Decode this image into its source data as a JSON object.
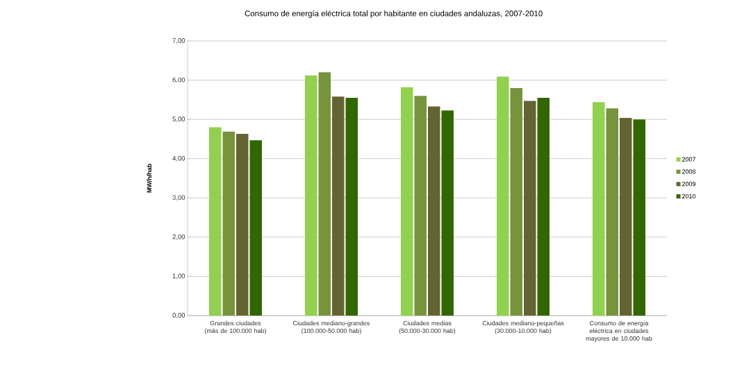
{
  "chart_data": {
    "type": "bar",
    "title": "Consumo de energía eléctrica total por habitante en ciudades andaluzas, 2007-2010",
    "ylabel": "MW/h/hab",
    "categories": [
      "Grandes ciudades (más de 100.000 hab)",
      "Ciudades mediano-grandes (100.000-50.000 hab)",
      "Ciudades medias (50.000-30.000 hab)",
      "Ciudades mediano-pequeñas (30.000-10.000 hab)",
      "Consumo de energía eléctrica en ciudades mayores de 10.000 hab"
    ],
    "series": [
      {
        "name": "2007",
        "color": "#92d050",
        "values": [
          4.8,
          6.12,
          5.82,
          6.09,
          5.44
        ]
      },
      {
        "name": "2008",
        "color": "#77933c",
        "values": [
          4.69,
          6.2,
          5.6,
          5.8,
          5.28
        ]
      },
      {
        "name": "2009",
        "color": "#646432",
        "values": [
          4.63,
          5.58,
          5.33,
          5.47,
          5.04
        ]
      },
      {
        "name": "2010",
        "color": "#336600",
        "values": [
          4.47,
          5.55,
          5.23,
          5.55,
          5.0
        ]
      }
    ],
    "ylim": [
      0,
      7
    ],
    "yticks": [
      {
        "value": 0,
        "label": "0,00"
      },
      {
        "value": 1,
        "label": "1,00"
      },
      {
        "value": 2,
        "label": "2,00"
      },
      {
        "value": 3,
        "label": "3,00"
      },
      {
        "value": 4,
        "label": "4,00"
      },
      {
        "value": 5,
        "label": "5,00"
      },
      {
        "value": 6,
        "label": "6,00"
      },
      {
        "value": 7,
        "label": "7,00"
      }
    ],
    "grid": "y",
    "legend": "right"
  }
}
